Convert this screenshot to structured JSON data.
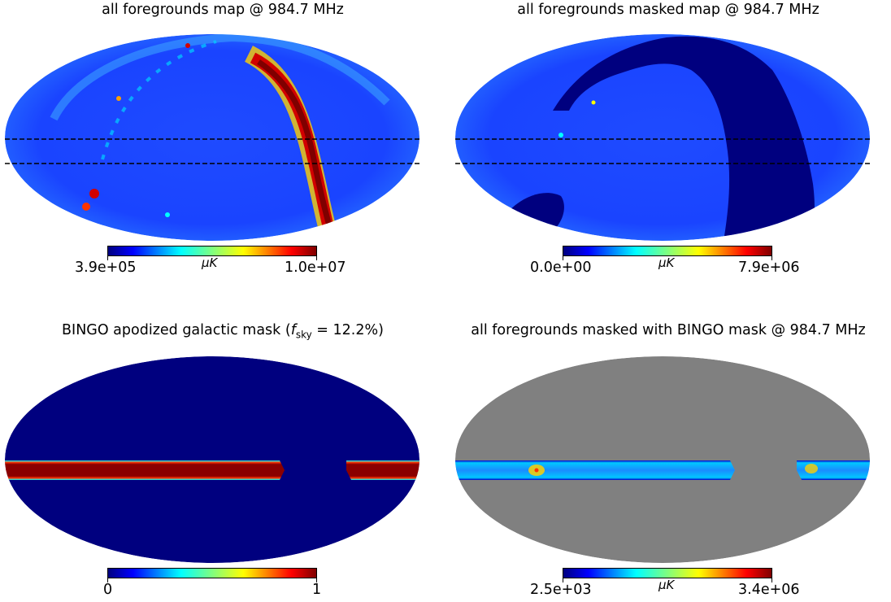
{
  "colors": {
    "jet": [
      "#00007f",
      "#0000ff",
      "#007fff",
      "#00ffff",
      "#7fff7f",
      "#ffff00",
      "#ff7f00",
      "#ff0000",
      "#7f0000"
    ],
    "masked_gray": "#808080"
  },
  "chart_data": [
    {
      "type": "heatmap",
      "projection": "mollweide",
      "title": "all foregrounds map @ 984.7 MHz",
      "colorbar": {
        "min_label": "3.9e+05",
        "max_label": "1.0e+07",
        "unit": "μK",
        "cmap": "jet"
      },
      "band_lines": "dashed"
    },
    {
      "type": "heatmap",
      "projection": "mollweide",
      "title": "all foregrounds masked map @ 984.7 MHz",
      "colorbar": {
        "min_label": "0.0e+00",
        "max_label": "7.9e+06",
        "unit": "μK",
        "cmap": "jet"
      },
      "band_lines": "dashed"
    },
    {
      "type": "heatmap",
      "projection": "mollweide",
      "title_prefix": "BINGO apodized galactic mask (",
      "title_f": "f",
      "title_sub": "sky",
      "title_suffix": " = 12.2%)",
      "colorbar": {
        "min_label": "0",
        "max_label": "1",
        "cmap": "jet"
      }
    },
    {
      "type": "heatmap",
      "projection": "mollweide",
      "title": "all foregrounds masked with BINGO mask @ 984.7 MHz",
      "colorbar": {
        "min_label": "2.5e+03",
        "max_label": "3.4e+06",
        "unit": "μK",
        "cmap": "jet"
      }
    }
  ]
}
